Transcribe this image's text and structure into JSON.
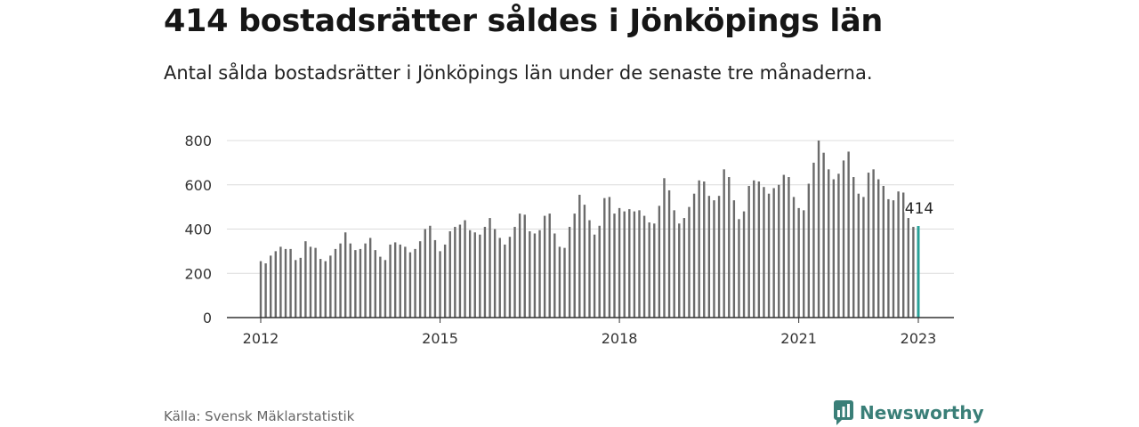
{
  "title": "414 bostadsrätter såldes i Jönköpings län",
  "subtitle": "Antal sålda bostadsrätter i Jönköpings län under de senaste tre månaderna.",
  "source": "Källa: Svensk Mäklarstatistik",
  "brand": "Newsworthy",
  "colors": {
    "bar": "#6b6b6b",
    "highlight": "#2aa198",
    "grid": "#dcdcdc",
    "axis": "#333333",
    "brand": "#3a7f78"
  },
  "chart_data": {
    "type": "bar",
    "xlabel": "",
    "ylabel": "",
    "ylim": [
      0,
      800
    ],
    "yticks": [
      0,
      200,
      400,
      600,
      800
    ],
    "xticks": [
      "2012",
      "2015",
      "2018",
      "2021",
      "2023"
    ],
    "start_month": "2012-01",
    "highlight_label": "414",
    "grid": true,
    "values": [
      255,
      245,
      280,
      300,
      320,
      310,
      310,
      260,
      270,
      345,
      320,
      315,
      265,
      255,
      280,
      310,
      335,
      385,
      335,
      305,
      310,
      335,
      360,
      305,
      275,
      260,
      330,
      340,
      330,
      320,
      295,
      310,
      345,
      400,
      415,
      350,
      300,
      330,
      390,
      410,
      420,
      440,
      395,
      385,
      375,
      410,
      450,
      400,
      360,
      330,
      365,
      410,
      470,
      465,
      390,
      380,
      395,
      460,
      470,
      380,
      320,
      315,
      410,
      470,
      555,
      510,
      440,
      375,
      415,
      540,
      545,
      470,
      495,
      480,
      490,
      480,
      485,
      460,
      430,
      425,
      505,
      630,
      575,
      485,
      425,
      450,
      500,
      560,
      620,
      615,
      550,
      530,
      550,
      670,
      635,
      530,
      445,
      480,
      595,
      620,
      615,
      590,
      560,
      585,
      600,
      645,
      635,
      545,
      495,
      485,
      605,
      700,
      800,
      745,
      670,
      625,
      650,
      710,
      750,
      635,
      560,
      545,
      655,
      670,
      625,
      595,
      535,
      530,
      570,
      565,
      450,
      410,
      414
    ]
  }
}
